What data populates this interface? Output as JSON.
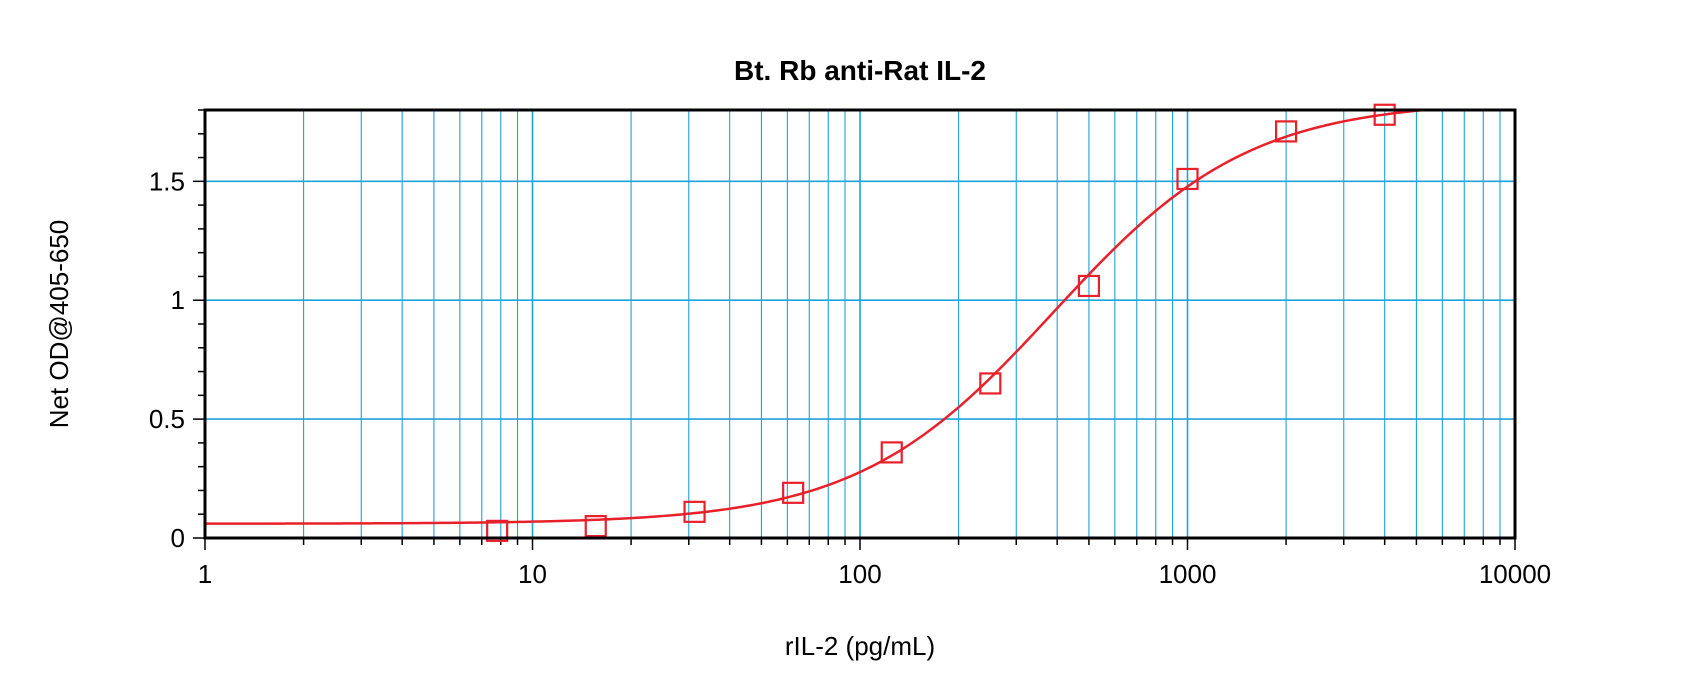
{
  "chart_data": {
    "type": "scatter",
    "title": "Bt. Rb anti-Rat IL-2",
    "xlabel": "rIL-2 (pg/mL)",
    "ylabel": "Net OD@405-650",
    "x_scale": "log",
    "xlim": [
      1,
      10000
    ],
    "ylim": [
      0,
      1.8
    ],
    "x_ticks": [
      {
        "value": 1,
        "label": "1"
      },
      {
        "value": 10,
        "label": "10"
      },
      {
        "value": 100,
        "label": "100"
      },
      {
        "value": 1000,
        "label": "1000"
      },
      {
        "value": 10000,
        "label": "10000"
      }
    ],
    "y_ticks": [
      {
        "value": 0,
        "label": "0"
      },
      {
        "value": 0.5,
        "label": "0.5"
      },
      {
        "value": 1,
        "label": "1"
      },
      {
        "value": 1.5,
        "label": "1.5"
      }
    ],
    "grid": true,
    "legend": "none",
    "series": [
      {
        "marker": "open-square",
        "color": "#E8202A",
        "x": [
          7.8,
          15.6,
          31.25,
          62.5,
          125,
          250,
          500,
          1000,
          2000,
          4000
        ],
        "y": [
          0.03,
          0.05,
          0.11,
          0.19,
          0.36,
          0.65,
          1.06,
          1.51,
          1.71,
          1.78
        ]
      }
    ],
    "fit_curve": {
      "type": "4PL",
      "color": "#E8202A",
      "bottom": 0.06,
      "top": 1.84,
      "ec50": 390,
      "hill": 1.45
    },
    "colors": {
      "grid": "#1BA3DC",
      "frame": "#000000",
      "data": "#E8202A"
    }
  }
}
